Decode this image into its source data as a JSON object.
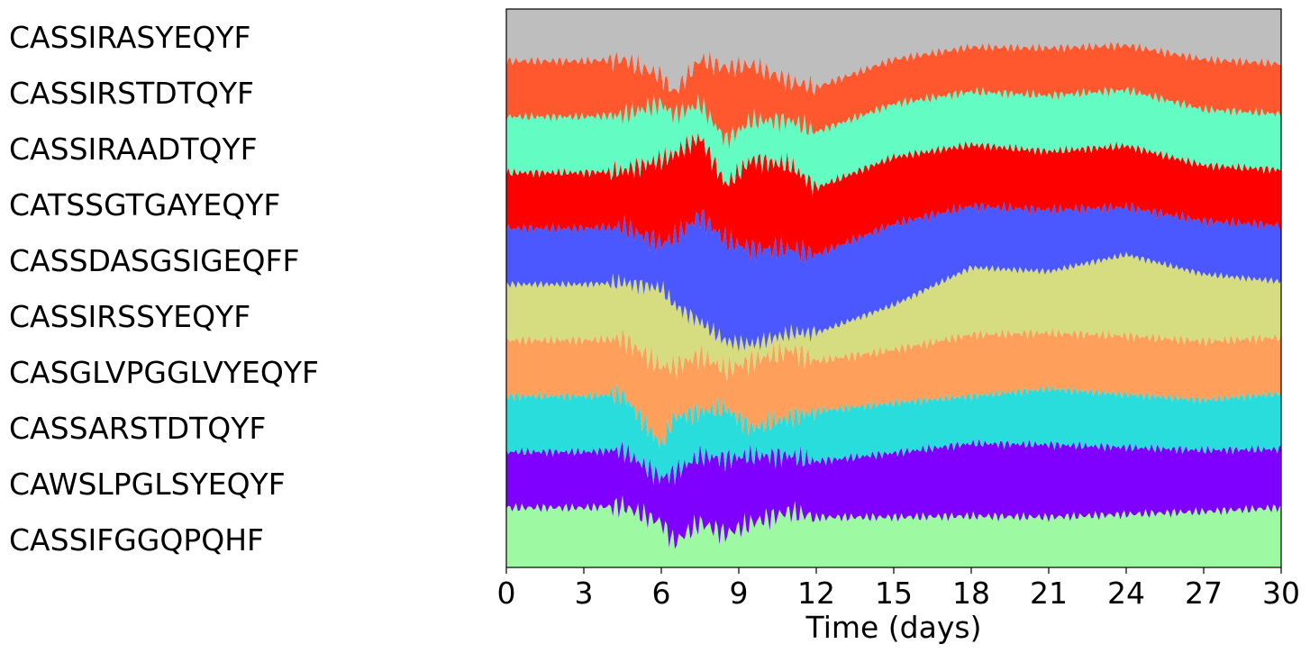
{
  "chart_data": {
    "type": "area",
    "stacked": true,
    "normalized": true,
    "xlabel": "Time (days)",
    "xlim": [
      0,
      30
    ],
    "xticks": [
      0,
      3,
      6,
      9,
      12,
      15,
      18,
      21,
      24,
      27,
      30
    ],
    "grid": false,
    "legend": "left labels",
    "series_order": "bottom-to-top",
    "x": [
      0,
      3,
      4.5,
      6,
      6.5,
      7.5,
      8.5,
      9.5,
      11,
      12,
      15,
      18,
      21,
      24,
      27,
      30
    ],
    "series": [
      {
        "name": "CASSIFGGQPQHF",
        "color": "#9efaa2",
        "values": [
          0.107,
          0.107,
          0.11,
          0.08,
          0.045,
          0.08,
          0.06,
          0.08,
          0.1,
          0.09,
          0.09,
          0.092,
          0.09,
          0.095,
          0.1,
          0.107
        ]
      },
      {
        "name": "CAWSLPGLSYEQYF",
        "color": "#7f00ff",
        "values": [
          0.1,
          0.1,
          0.1,
          0.08,
          0.125,
          0.12,
          0.135,
          0.12,
          0.1,
          0.1,
          0.115,
          0.13,
          0.13,
          0.12,
          0.11,
          0.105
        ]
      },
      {
        "name": "CASSARSTDTQYF",
        "color": "#29dddd",
        "values": [
          0.1,
          0.1,
          0.1,
          0.06,
          0.1,
          0.08,
          0.09,
          0.05,
          0.07,
          0.09,
          0.09,
          0.085,
          0.1,
          0.095,
          0.09,
          0.1
        ]
      },
      {
        "name": "CASGLVPGGLVYEQYF",
        "color": "#fea05b",
        "values": [
          0.1,
          0.1,
          0.1,
          0.14,
          0.09,
          0.1,
          0.07,
          0.12,
          0.12,
          0.09,
          0.095,
          0.11,
          0.1,
          0.105,
          0.105,
          0.1
        ]
      },
      {
        "name": "CASSIRSSYEQYF",
        "color": "#d5dd80",
        "values": [
          0.1,
          0.1,
          0.1,
          0.14,
          0.11,
          0.06,
          0.05,
          0.03,
          0.03,
          0.05,
          0.08,
          0.12,
          0.11,
          0.145,
          0.12,
          0.1
        ]
      },
      {
        "name": "CASSDASGSIGEQFF",
        "color": "#4b57ff",
        "values": [
          0.1,
          0.1,
          0.1,
          0.08,
          0.12,
          0.19,
          0.18,
          0.17,
          0.15,
          0.14,
          0.145,
          0.11,
          0.11,
          0.085,
          0.095,
          0.1
        ]
      },
      {
        "name": "CATSSGTGAYEQYF",
        "color": "#ff0000",
        "values": [
          0.1,
          0.1,
          0.1,
          0.15,
          0.15,
          0.14,
          0.1,
          0.16,
          0.15,
          0.12,
          0.12,
          0.11,
          0.105,
          0.11,
          0.1,
          0.1
        ]
      },
      {
        "name": "CASSIRAADTQYF",
        "color": "#63fdc3",
        "values": [
          0.1,
          0.1,
          0.1,
          0.1,
          0.07,
          0.06,
          0.08,
          0.07,
          0.08,
          0.1,
          0.095,
          0.095,
          0.1,
          0.1,
          0.1,
          0.1
        ]
      },
      {
        "name": "CASSIRSTDTQYF",
        "color": "#ff572e",
        "values": [
          0.1,
          0.1,
          0.1,
          0.05,
          0.04,
          0.08,
          0.13,
          0.1,
          0.07,
          0.08,
          0.08,
          0.08,
          0.085,
          0.08,
          0.09,
          0.09
        ]
      },
      {
        "name": "CASSIRASYEQYF",
        "color": "#bebebe",
        "values": [
          0.093,
          0.093,
          0.09,
          0.12,
          0.15,
          0.09,
          0.105,
          0.1,
          0.13,
          0.14,
          0.09,
          0.068,
          0.07,
          0.065,
          0.09,
          0.098
        ]
      }
    ]
  }
}
